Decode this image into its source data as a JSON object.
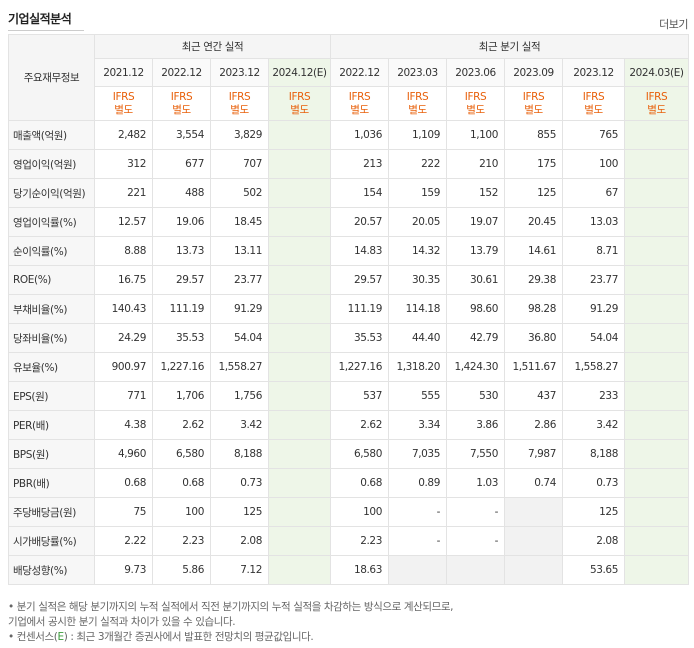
{
  "header": {
    "title": "기업실적분석",
    "more_label": "더보기"
  },
  "table": {
    "rowhead_label": "주요재무정보",
    "annual_label": "최근 연간 실적",
    "quarter_label": "최근 분기 실적",
    "annual_periods": [
      "2021.12",
      "2022.12",
      "2023.12",
      "2024.12(E)"
    ],
    "quarter_periods": [
      "2022.12",
      "2023.03",
      "2023.06",
      "2023.09",
      "2023.12",
      "2024.03(E)"
    ],
    "ifrs_top": "IFRS",
    "ifrs_bottom": "별도",
    "rows": [
      {
        "label": "매출액(억원)",
        "a": [
          "2,482",
          "3,554",
          "3,829",
          ""
        ],
        "q": [
          "1,036",
          "1,109",
          "1,100",
          "855",
          "765",
          ""
        ]
      },
      {
        "label": "영업이익(억원)",
        "a": [
          "312",
          "677",
          "707",
          ""
        ],
        "q": [
          "213",
          "222",
          "210",
          "175",
          "100",
          ""
        ]
      },
      {
        "label": "당기순이익(억원)",
        "a": [
          "221",
          "488",
          "502",
          ""
        ],
        "q": [
          "154",
          "159",
          "152",
          "125",
          "67",
          ""
        ]
      },
      {
        "label": "영업이익률(%)",
        "a": [
          "12.57",
          "19.06",
          "18.45",
          ""
        ],
        "q": [
          "20.57",
          "20.05",
          "19.07",
          "20.45",
          "13.03",
          ""
        ]
      },
      {
        "label": "순이익률(%)",
        "a": [
          "8.88",
          "13.73",
          "13.11",
          ""
        ],
        "q": [
          "14.83",
          "14.32",
          "13.79",
          "14.61",
          "8.71",
          ""
        ]
      },
      {
        "label": "ROE(%)",
        "a": [
          "16.75",
          "29.57",
          "23.77",
          ""
        ],
        "q": [
          "29.57",
          "30.35",
          "30.61",
          "29.38",
          "23.77",
          ""
        ]
      },
      {
        "label": "부채비율(%)",
        "a": [
          "140.43",
          "111.19",
          "91.29",
          ""
        ],
        "q": [
          "111.19",
          "114.18",
          "98.60",
          "98.28",
          "91.29",
          ""
        ]
      },
      {
        "label": "당좌비율(%)",
        "a": [
          "24.29",
          "35.53",
          "54.04",
          ""
        ],
        "q": [
          "35.53",
          "44.40",
          "42.79",
          "36.80",
          "54.04",
          ""
        ]
      },
      {
        "label": "유보율(%)",
        "a": [
          "900.97",
          "1,227.16",
          "1,558.27",
          ""
        ],
        "q": [
          "1,227.16",
          "1,318.20",
          "1,424.30",
          "1,511.67",
          "1,558.27",
          ""
        ]
      },
      {
        "label": "EPS(원)",
        "a": [
          "771",
          "1,706",
          "1,756",
          ""
        ],
        "q": [
          "537",
          "555",
          "530",
          "437",
          "233",
          ""
        ]
      },
      {
        "label": "PER(배)",
        "a": [
          "4.38",
          "2.62",
          "3.42",
          ""
        ],
        "q": [
          "2.62",
          "3.34",
          "3.86",
          "2.86",
          "3.42",
          ""
        ]
      },
      {
        "label": "BPS(원)",
        "a": [
          "4,960",
          "6,580",
          "8,188",
          ""
        ],
        "q": [
          "6,580",
          "7,035",
          "7,550",
          "7,987",
          "8,188",
          ""
        ]
      },
      {
        "label": "PBR(배)",
        "a": [
          "0.68",
          "0.68",
          "0.73",
          ""
        ],
        "q": [
          "0.68",
          "0.89",
          "1.03",
          "0.74",
          "0.73",
          ""
        ]
      },
      {
        "label": "주당배당금(원)",
        "a": [
          "75",
          "100",
          "125",
          ""
        ],
        "q": [
          "100",
          "-",
          "-",
          "",
          "125",
          ""
        ]
      },
      {
        "label": "시가배당률(%)",
        "a": [
          "2.22",
          "2.23",
          "2.08",
          ""
        ],
        "q": [
          "2.23",
          "-",
          "-",
          "",
          "2.08",
          ""
        ]
      },
      {
        "label": "배당성향(%)",
        "a": [
          "9.73",
          "5.86",
          "7.12",
          ""
        ],
        "q": [
          "18.63",
          "",
          "",
          "",
          "53.65",
          ""
        ]
      }
    ]
  },
  "notes": {
    "line1": "• 분기 실적은 해당 분기까지의 누적 실적에서 직전 분기까지의 누적 실적을 차감하는 방식으로 계산되므로,",
    "line2": "   기업에서 공시한 분기 실적과 차이가 있을 수 있습니다.",
    "line3_prefix": "• 컨센서스(",
    "line3_e": "E",
    "line3_suffix": ") : 최근 3개월간 증권사에서 발표한 전망치의 평균값입니다."
  }
}
